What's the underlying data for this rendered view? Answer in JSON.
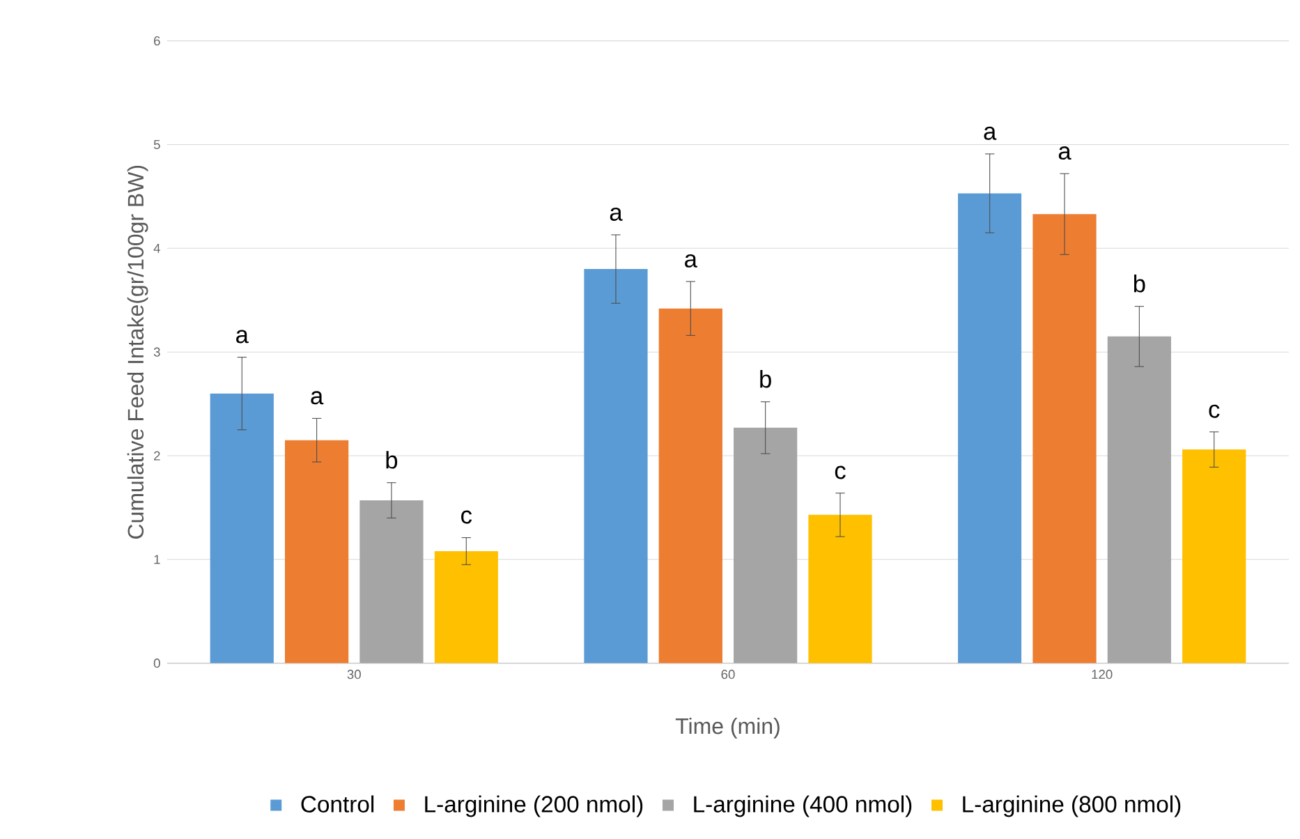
{
  "chart_data": {
    "type": "bar",
    "xlabel": "Time (min)",
    "ylabel": "Cumulative Feed Intake(gr/100gr BW)",
    "categories": [
      "30",
      "60",
      "120"
    ],
    "series": [
      {
        "name": "Control",
        "color": "#5b9bd5",
        "values": [
          2.6,
          3.8,
          4.53
        ],
        "errors": [
          0.35,
          0.33,
          0.38
        ],
        "value_labels": [
          "a",
          "a",
          "a"
        ]
      },
      {
        "name": "L-arginine (200 nmol)",
        "color": "#ed7d31",
        "values": [
          2.15,
          3.42,
          4.33
        ],
        "errors": [
          0.21,
          0.26,
          0.39
        ],
        "value_labels": [
          "a",
          "a",
          "a"
        ]
      },
      {
        "name": "L-arginine (400 nmol)",
        "color": "#a5a5a5",
        "values": [
          1.57,
          2.27,
          3.15
        ],
        "errors": [
          0.17,
          0.25,
          0.29
        ],
        "value_labels": [
          "b",
          "b",
          "b"
        ]
      },
      {
        "name": "L-arginine (800 nmol)",
        "color": "#ffc000",
        "values": [
          1.08,
          1.43,
          2.06
        ],
        "errors": [
          0.13,
          0.21,
          0.17
        ],
        "value_labels": [
          "c",
          "c",
          "c"
        ]
      }
    ],
    "ylim": [
      0,
      6
    ],
    "yticks": [
      0,
      1,
      2,
      3,
      4,
      5,
      6
    ],
    "grid": "y",
    "legend": "bottom"
  }
}
